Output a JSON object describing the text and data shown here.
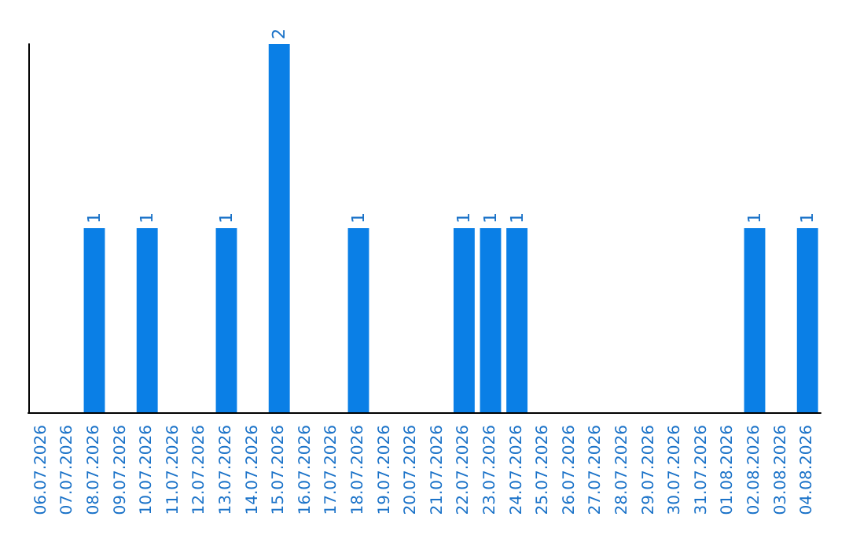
{
  "chart_data": {
    "type": "bar",
    "categories": [
      "06.07.2026",
      "07.07.2026",
      "08.07.2026",
      "09.07.2026",
      "10.07.2026",
      "11.07.2026",
      "12.07.2026",
      "13.07.2026",
      "14.07.2026",
      "15.07.2026",
      "16.07.2026",
      "17.07.2026",
      "18.07.2026",
      "19.07.2026",
      "20.07.2026",
      "21.07.2026",
      "22.07.2026",
      "23.07.2026",
      "24.07.2026",
      "25.07.2026",
      "26.07.2026",
      "27.07.2026",
      "28.07.2026",
      "29.07.2026",
      "30.07.2026",
      "31.07.2026",
      "01.08.2026",
      "02.08.2026",
      "03.08.2026",
      "04.08.2026"
    ],
    "values": [
      0,
      0,
      1,
      0,
      1,
      0,
      0,
      1,
      0,
      2,
      0,
      0,
      1,
      0,
      0,
      0,
      1,
      1,
      1,
      0,
      0,
      0,
      0,
      0,
      0,
      0,
      0,
      1,
      0,
      1
    ],
    "value_labels": [
      null,
      null,
      "1",
      null,
      "1",
      null,
      null,
      "1",
      null,
      "2",
      null,
      null,
      "1",
      null,
      null,
      null,
      "1",
      "1",
      "1",
      null,
      null,
      null,
      null,
      null,
      null,
      null,
      null,
      "1",
      null,
      "1"
    ],
    "color": "#0a7fe6",
    "tick_labels": "x",
    "grid": false
  }
}
